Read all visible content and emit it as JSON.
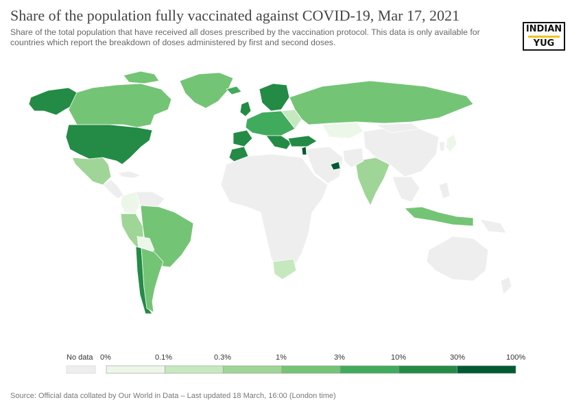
{
  "title": "Share of the population fully vaccinated against COVID-19, Mar 17, 2021",
  "subtitle": "Share of the total population that have received all doses prescribed by the vaccination protocol. This data is only available for countries which report the breakdown of doses administered by first and second doses.",
  "logo": {
    "line1": "INDIAN",
    "line2": "YUG",
    "accent": "#f2c21b"
  },
  "legend": {
    "no_data_label": "No data",
    "no_data_color": "#eeeeee",
    "ticks": [
      "0%",
      "0.1%",
      "0.3%",
      "1%",
      "3%",
      "10%",
      "30%",
      "100%"
    ],
    "colors": [
      "#ecf7e9",
      "#c6e8bf",
      "#9fd596",
      "#74c476",
      "#41ab5d",
      "#238b45",
      "#005a32"
    ]
  },
  "source": "Source: Official data collated by Our World in Data – Last updated 18 March, 16:00 (London time)"
}
